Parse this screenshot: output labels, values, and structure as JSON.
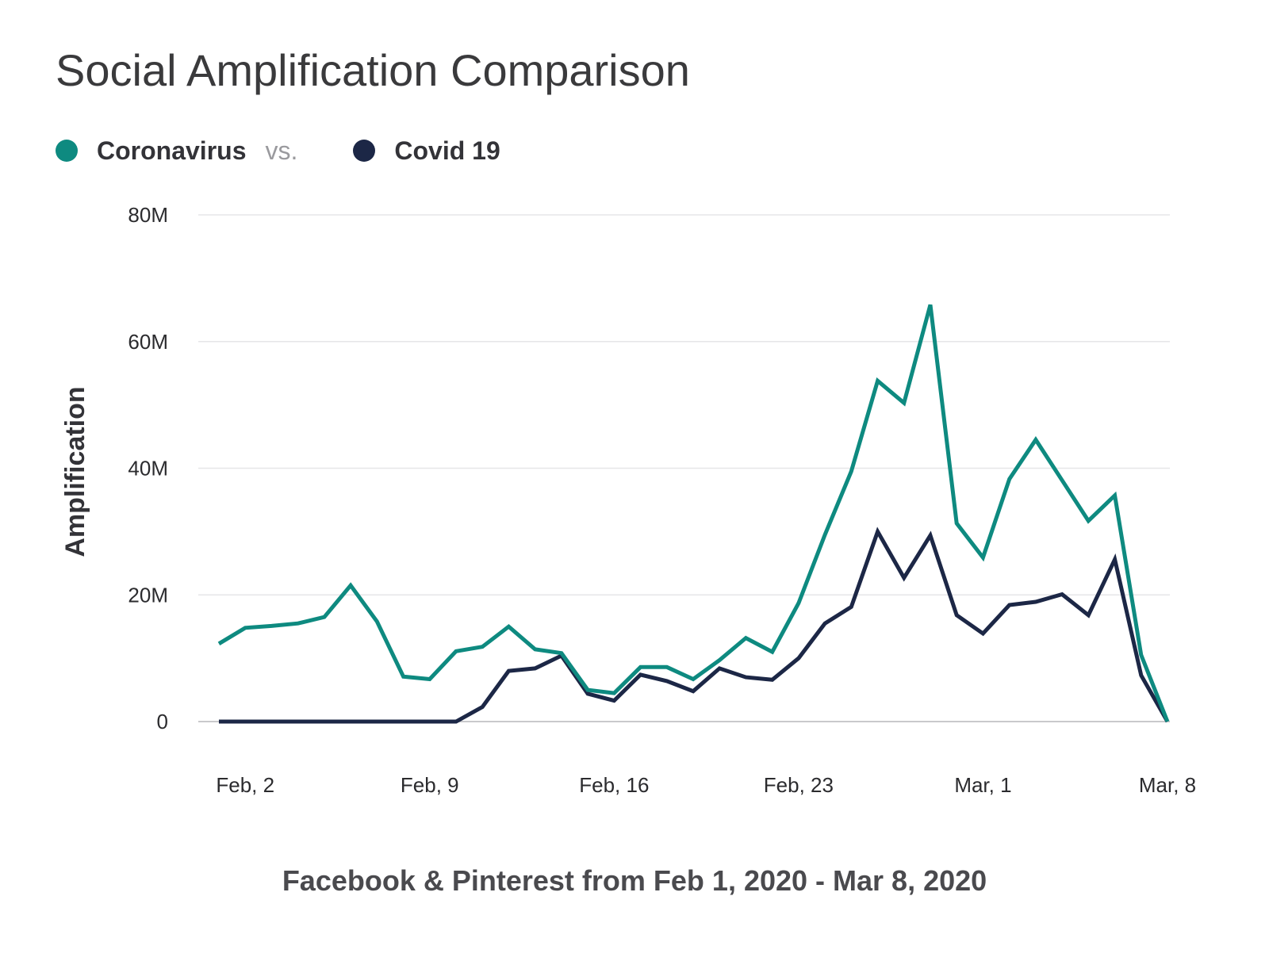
{
  "chart_data": {
    "type": "line",
    "title": "Social Amplification Comparison",
    "legend": {
      "placement": "top-left",
      "separator": "vs."
    },
    "xlabel": "Facebook & Pinterest from Feb 1, 2020 - Mar 8, 2020",
    "ylabel": "Amplification",
    "ylim": [
      0,
      80000000
    ],
    "y_ticks": [
      0,
      20000000,
      40000000,
      60000000,
      80000000
    ],
    "y_tick_labels": [
      "0",
      "20M",
      "40M",
      "60M",
      "80M"
    ],
    "x_ticks": [
      "2020-02-02",
      "2020-02-09",
      "2020-02-16",
      "2020-02-23",
      "2020-03-01",
      "2020-03-08"
    ],
    "x_tick_labels": [
      "Feb, 2",
      "Feb, 9",
      "Feb, 16",
      "Feb, 23",
      "Mar, 1",
      "Mar, 8"
    ],
    "grid": true,
    "x": [
      "2020-02-01",
      "2020-02-02",
      "2020-02-03",
      "2020-02-04",
      "2020-02-05",
      "2020-02-06",
      "2020-02-07",
      "2020-02-08",
      "2020-02-09",
      "2020-02-10",
      "2020-02-11",
      "2020-02-12",
      "2020-02-13",
      "2020-02-14",
      "2020-02-15",
      "2020-02-16",
      "2020-02-17",
      "2020-02-18",
      "2020-02-19",
      "2020-02-20",
      "2020-02-21",
      "2020-02-22",
      "2020-02-23",
      "2020-02-24",
      "2020-02-25",
      "2020-02-26",
      "2020-02-27",
      "2020-02-28",
      "2020-02-29",
      "2020-03-01",
      "2020-03-02",
      "2020-03-03",
      "2020-03-04",
      "2020-03-05",
      "2020-03-06",
      "2020-03-07",
      "2020-03-08"
    ],
    "series": [
      {
        "name": "Coronavirus",
        "color": "#0e8a80",
        "values": [
          12300000,
          14800000,
          15100000,
          15500000,
          16500000,
          21500000,
          15800000,
          7100000,
          6700000,
          11100000,
          11800000,
          15000000,
          11400000,
          10800000,
          5000000,
          4500000,
          8600000,
          8600000,
          6700000,
          9700000,
          13200000,
          11000000,
          18700000,
          29500000,
          39500000,
          53800000,
          50300000,
          65800000,
          31300000,
          25900000,
          38300000,
          44500000,
          38100000,
          31700000,
          35700000,
          10500000,
          0
        ]
      },
      {
        "name": "Covid 19",
        "color": "#1c2746",
        "values": [
          0,
          0,
          0,
          0,
          0,
          0,
          0,
          0,
          0,
          0,
          2300000,
          8000000,
          8400000,
          10400000,
          4400000,
          3300000,
          7400000,
          6400000,
          4800000,
          8400000,
          7000000,
          6600000,
          10000000,
          15500000,
          18100000,
          30000000,
          22700000,
          29400000,
          16800000,
          13900000,
          18400000,
          18900000,
          20100000,
          16800000,
          25600000,
          7300000,
          0
        ]
      }
    ]
  }
}
